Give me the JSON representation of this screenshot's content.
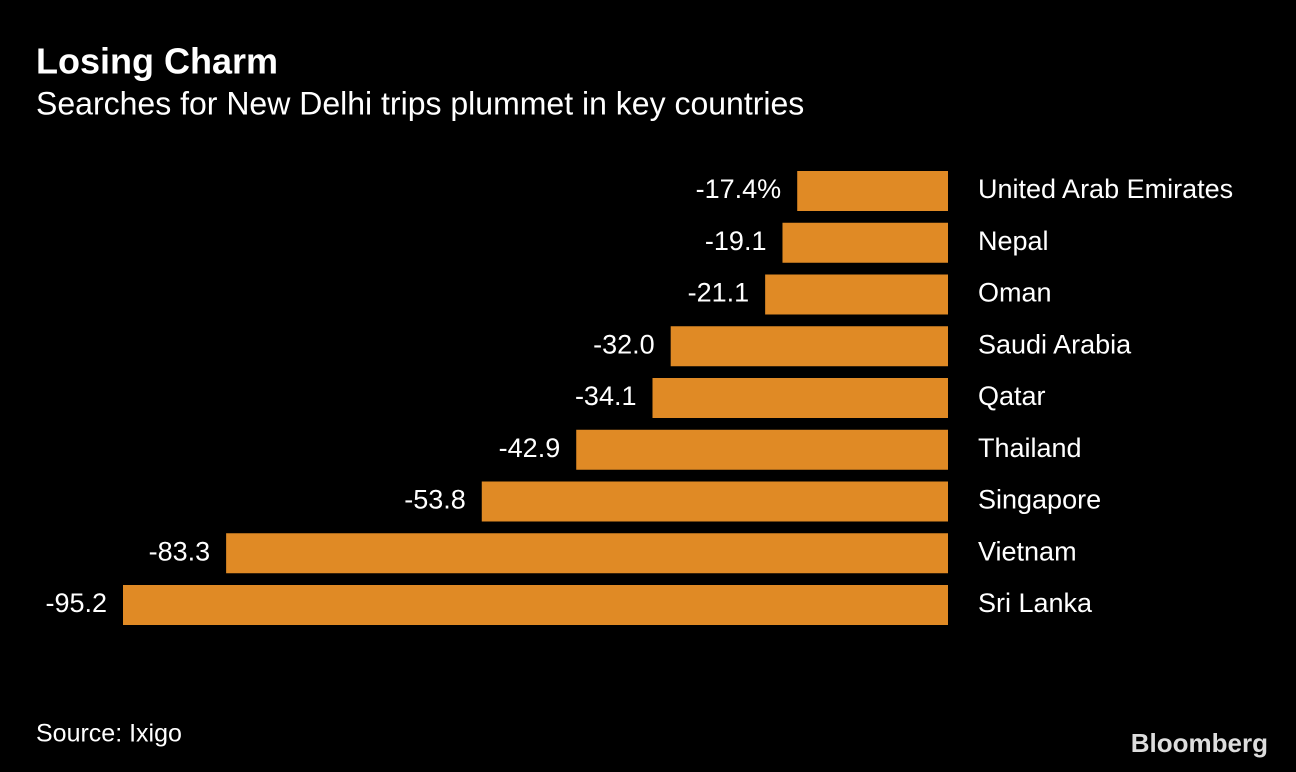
{
  "chart_data": {
    "type": "bar",
    "orientation": "horizontal",
    "title": "Losing Charm",
    "subtitle": "Searches for New Delhi trips plummet in key countries",
    "categories": [
      "United Arab Emirates",
      "Nepal",
      "Oman",
      "Saudi Arabia",
      "Qatar",
      "Thailand",
      "Singapore",
      "Vietnam",
      "Sri Lanka"
    ],
    "values": [
      -17.4,
      -19.1,
      -21.1,
      -32.0,
      -34.1,
      -42.9,
      -53.8,
      -83.3,
      -95.2
    ],
    "value_labels": [
      "-17.4%",
      "-19.1",
      "-21.1",
      "-32.0",
      "-34.1",
      "-42.9",
      "-53.8",
      "-83.3",
      "-95.2"
    ],
    "color": "#e08a25",
    "source": "Source: Ixigo",
    "brand": "Bloomberg"
  }
}
